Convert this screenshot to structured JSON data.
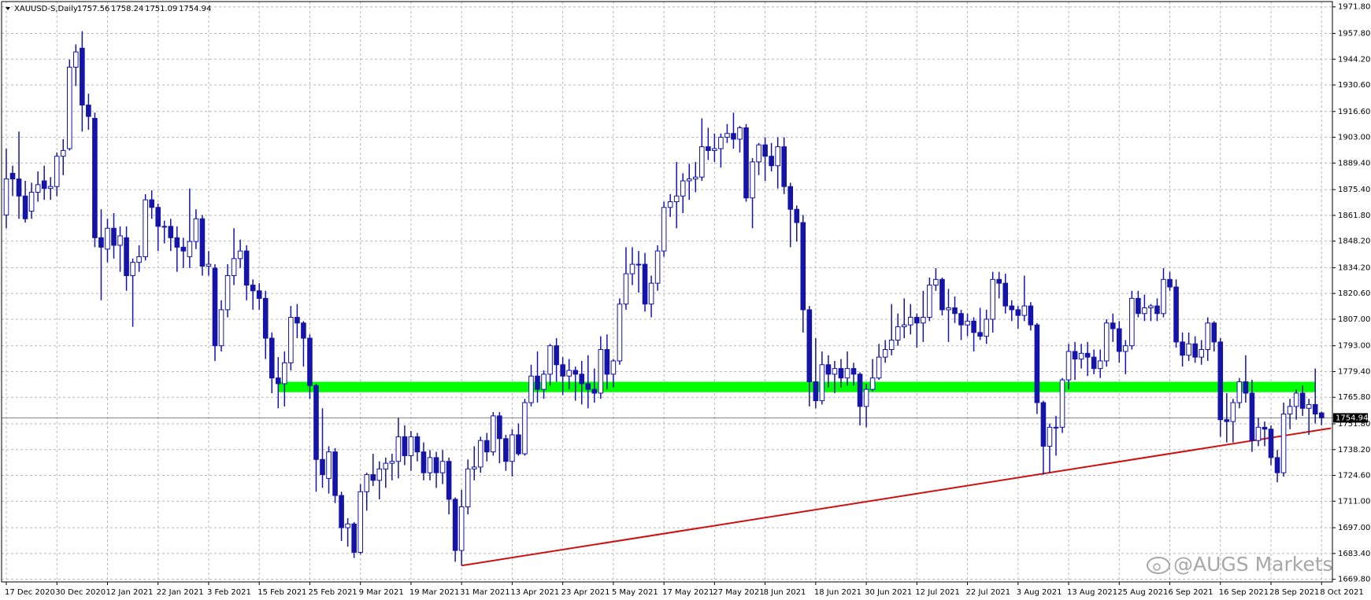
{
  "chart_data": {
    "type": "candlestick",
    "title": "XAUUSD-S,Daily",
    "watermark": "@AUGS Markets",
    "categories": [
      "17 Dec 2020",
      null,
      null,
      null,
      null,
      null,
      null,
      null,
      "30 Dec 2020",
      null,
      null,
      null,
      null,
      null,
      null,
      null,
      "12 Jan 2021",
      null,
      null,
      null,
      null,
      null,
      null,
      null,
      "22 Jan 2021",
      null,
      null,
      null,
      null,
      null,
      null,
      null,
      "3 Feb 2021",
      null,
      null,
      null,
      null,
      null,
      null,
      null,
      "15 Feb 2021",
      null,
      null,
      null,
      null,
      null,
      null,
      null,
      "25 Feb 2021",
      null,
      null,
      null,
      null,
      null,
      null,
      null,
      "9 Mar 2021",
      null,
      null,
      null,
      null,
      null,
      null,
      null,
      "19 Mar 2021",
      null,
      null,
      null,
      null,
      null,
      null,
      null,
      "31 Mar 2021",
      null,
      null,
      null,
      null,
      null,
      null,
      null,
      "13 Apr 2021",
      null,
      null,
      null,
      null,
      null,
      null,
      null,
      "23 Apr 2021",
      null,
      null,
      null,
      null,
      null,
      null,
      null,
      "5 May 2021",
      null,
      null,
      null,
      null,
      null,
      null,
      null,
      "17 May 2021",
      null,
      null,
      null,
      null,
      null,
      null,
      null,
      "27 May 2021",
      null,
      null,
      null,
      null,
      null,
      null,
      null,
      "8 Jun 2021",
      null,
      null,
      null,
      null,
      null,
      null,
      null,
      "18 Jun 2021",
      null,
      null,
      null,
      null,
      null,
      null,
      null,
      "30 Jun 2021",
      null,
      null,
      null,
      null,
      null,
      null,
      null,
      "12 Jul 2021",
      null,
      null,
      null,
      null,
      null,
      null,
      null,
      "22 Jul 2021",
      null,
      null,
      null,
      null,
      null,
      null,
      null,
      "3 Aug 2021",
      null,
      null,
      null,
      null,
      null,
      null,
      null,
      "13 Aug 2021",
      null,
      null,
      null,
      null,
      null,
      null,
      null,
      "25 Aug 2021",
      null,
      null,
      null,
      null,
      null,
      null,
      null,
      "6 Sep 2021",
      null,
      null,
      null,
      null,
      null,
      null,
      null,
      "16 Sep 2021",
      null,
      null,
      null,
      null,
      null,
      null,
      null,
      "28 Sep 2021",
      null,
      null,
      null,
      null,
      null,
      null,
      null,
      "8 Oct 2021"
    ],
    "open": [
      1862,
      1884,
      1881,
      1872,
      1864,
      1874,
      1880,
      1876,
      1877,
      1893,
      1897,
      1940,
      1950,
      1920,
      1913,
      1850,
      1844,
      1855,
      1846,
      1850,
      1830,
      1837,
      1840,
      1870,
      1866,
      1856,
      1856,
      1850,
      1845,
      1840,
      1848,
      1860,
      1835,
      1834,
      1793,
      1812,
      1830,
      1839,
      1843,
      1825,
      1822,
      1818,
      1797,
      1776,
      1773,
      1784,
      1808,
      1805,
      1797,
      1772,
      1733,
      1723,
      1737,
      1714,
      1697,
      1699,
      1684,
      1716,
      1725,
      1722,
      1728,
      1731,
      1732,
      1745,
      1735,
      1745,
      1737,
      1726,
      1734,
      1726,
      1732,
      1712,
      1685,
      1708,
      1728,
      1729,
      1743,
      1737,
      1756,
      1744,
      1732,
      1746,
      1736,
      1763,
      1777,
      1770,
      1778,
      1793,
      1783,
      1777,
      1780,
      1778,
      1773,
      1770,
      1768,
      1791,
      1778,
      1785,
      1815,
      1831,
      1836,
      1836,
      1815,
      1826,
      1843,
      1866,
      1869,
      1872,
      1880,
      1881,
      1882,
      1898,
      1896,
      1897,
      1903,
      1905,
      1902,
      1908,
      1871,
      1890,
      1899,
      1893,
      1888,
      1898,
      1877,
      1865,
      1858,
      1812,
      1774,
      1764,
      1783,
      1778,
      1781,
      1776,
      1781,
      1778,
      1761,
      1770,
      1776,
      1787,
      1791,
      1796,
      1803,
      1804,
      1808,
      1805,
      1808,
      1825,
      1828,
      1812,
      1813,
      1810,
      1804,
      1806,
      1800,
      1798,
      1807,
      1828,
      1826,
      1814,
      1812,
      1809,
      1814,
      1804,
      1763,
      1740,
      1750,
      1750,
      1775,
      1790,
      1786,
      1789,
      1787,
      1781,
      1785,
      1805,
      1802,
      1790,
      1793,
      1818,
      1810,
      1813,
      1814,
      1810,
      1828,
      1824,
      1795,
      1788,
      1794,
      1787,
      1791,
      1805,
      1795,
      1754,
      1753,
      1763,
      1774,
      1768,
      1743,
      1750,
      1749,
      1734,
      1726,
      1757,
      1761,
      1768,
      1760,
      1762,
      1757.56
    ],
    "high": [
      1897,
      1888,
      1906,
      1880,
      1879,
      1885,
      1888,
      1882,
      1895,
      1902,
      1944,
      1952,
      1959,
      1926,
      1916,
      1865,
      1860,
      1863,
      1856,
      1856,
      1839,
      1846,
      1873,
      1875,
      1868,
      1859,
      1860,
      1856,
      1850,
      1876,
      1865,
      1862,
      1843,
      1836,
      1817,
      1836,
      1855,
      1849,
      1846,
      1828,
      1826,
      1822,
      1800,
      1787,
      1790,
      1814,
      1815,
      1806,
      1799,
      1773,
      1760,
      1740,
      1739,
      1716,
      1702,
      1700,
      1720,
      1726,
      1736,
      1732,
      1734,
      1736,
      1755,
      1751,
      1748,
      1747,
      1742,
      1738,
      1737,
      1738,
      1734,
      1713,
      1717,
      1733,
      1740,
      1745,
      1747,
      1758,
      1758,
      1746,
      1749,
      1752,
      1765,
      1783,
      1790,
      1780,
      1794,
      1797,
      1787,
      1786,
      1782,
      1785,
      1788,
      1781,
      1798,
      1799,
      1786,
      1818,
      1845,
      1845,
      1843,
      1842,
      1830,
      1846,
      1869,
      1873,
      1890,
      1884,
      1889,
      1890,
      1913,
      1908,
      1905,
      1905,
      1910,
      1916,
      1909,
      1910,
      1892,
      1900,
      1903,
      1900,
      1903,
      1903,
      1879,
      1867,
      1862,
      1814,
      1797,
      1790,
      1788,
      1785,
      1786,
      1790,
      1784,
      1779,
      1773,
      1786,
      1794,
      1796,
      1815,
      1810,
      1818,
      1815,
      1810,
      1822,
      1829,
      1834,
      1829,
      1823,
      1819,
      1812,
      1810,
      1808,
      1813,
      1812,
      1832,
      1832,
      1831,
      1817,
      1814,
      1830,
      1816,
      1805,
      1764,
      1752,
      1756,
      1776,
      1794,
      1795,
      1794,
      1795,
      1791,
      1791,
      1807,
      1810,
      1806,
      1796,
      1822,
      1822,
      1820,
      1815,
      1818,
      1834,
      1832,
      1828,
      1800,
      1800,
      1798,
      1796,
      1808,
      1806,
      1797,
      1768,
      1765,
      1776,
      1788,
      1775,
      1755,
      1753,
      1751,
      1738,
      1763,
      1765,
      1770,
      1772,
      1765,
      1781,
      1758.24
    ],
    "low": [
      1855,
      1872,
      1860,
      1858,
      1860,
      1869,
      1870,
      1870,
      1872,
      1883,
      1896,
      1930,
      1906,
      1907,
      1845,
      1817,
      1837,
      1839,
      1832,
      1822,
      1803,
      1832,
      1838,
      1860,
      1843,
      1847,
      1843,
      1832,
      1834,
      1834,
      1844,
      1830,
      1830,
      1785,
      1790,
      1808,
      1825,
      1834,
      1817,
      1812,
      1812,
      1786,
      1768,
      1760,
      1761,
      1780,
      1797,
      1782,
      1765,
      1716,
      1718,
      1715,
      1710,
      1690,
      1687,
      1681,
      1683,
      1706,
      1719,
      1712,
      1718,
      1722,
      1723,
      1730,
      1727,
      1732,
      1722,
      1722,
      1718,
      1720,
      1704,
      1679,
      1677,
      1704,
      1722,
      1726,
      1732,
      1735,
      1731,
      1727,
      1724,
      1735,
      1735,
      1761,
      1763,
      1765,
      1772,
      1774,
      1767,
      1770,
      1764,
      1762,
      1760,
      1763,
      1765,
      1770,
      1771,
      1783,
      1812,
      1825,
      1821,
      1811,
      1808,
      1822,
      1840,
      1861,
      1855,
      1863,
      1870,
      1874,
      1880,
      1891,
      1890,
      1887,
      1900,
      1897,
      1895,
      1869,
      1855,
      1883,
      1880,
      1885,
      1876,
      1873,
      1845,
      1848,
      1800,
      1761,
      1760,
      1762,
      1771,
      1768,
      1771,
      1772,
      1772,
      1751,
      1750,
      1769,
      1775,
      1784,
      1788,
      1793,
      1797,
      1799,
      1792,
      1795,
      1806,
      1822,
      1809,
      1795,
      1805,
      1796,
      1798,
      1790,
      1796,
      1794,
      1800,
      1818,
      1810,
      1806,
      1802,
      1806,
      1801,
      1757,
      1725,
      1726,
      1735,
      1747,
      1770,
      1775,
      1781,
      1777,
      1778,
      1776,
      1782,
      1795,
      1784,
      1778,
      1791,
      1808,
      1806,
      1806,
      1806,
      1808,
      1822,
      1792,
      1782,
      1785,
      1784,
      1783,
      1785,
      1790,
      1745,
      1742,
      1742,
      1760,
      1763,
      1737,
      1740,
      1740,
      1730,
      1721,
      1724,
      1749,
      1754,
      1756,
      1746,
      1752,
      1751.09
    ],
    "close": [
      1881,
      1881,
      1872,
      1860,
      1874,
      1878,
      1876,
      1877,
      1893,
      1896,
      1940,
      1948,
      1920,
      1914,
      1850,
      1845,
      1855,
      1846,
      1851,
      1830,
      1837,
      1840,
      1870,
      1866,
      1856,
      1856,
      1850,
      1845,
      1843,
      1848,
      1860,
      1835,
      1836,
      1793,
      1812,
      1830,
      1839,
      1843,
      1825,
      1822,
      1818,
      1797,
      1776,
      1773,
      1784,
      1808,
      1805,
      1797,
      1772,
      1733,
      1725,
      1737,
      1714,
      1697,
      1699,
      1684,
      1716,
      1725,
      1722,
      1728,
      1731,
      1732,
      1745,
      1735,
      1745,
      1737,
      1726,
      1734,
      1726,
      1732,
      1712,
      1685,
      1708,
      1728,
      1729,
      1743,
      1737,
      1756,
      1744,
      1732,
      1746,
      1736,
      1763,
      1777,
      1770,
      1778,
      1793,
      1783,
      1777,
      1780,
      1778,
      1773,
      1770,
      1768,
      1791,
      1778,
      1785,
      1815,
      1831,
      1836,
      1836,
      1815,
      1826,
      1843,
      1866,
      1869,
      1872,
      1880,
      1881,
      1882,
      1898,
      1896,
      1897,
      1903,
      1905,
      1902,
      1908,
      1871,
      1890,
      1899,
      1893,
      1888,
      1898,
      1877,
      1865,
      1858,
      1812,
      1774,
      1764,
      1783,
      1778,
      1781,
      1776,
      1781,
      1778,
      1761,
      1770,
      1776,
      1787,
      1791,
      1796,
      1803,
      1804,
      1808,
      1805,
      1808,
      1825,
      1828,
      1812,
      1813,
      1810,
      1804,
      1806,
      1800,
      1798,
      1807,
      1828,
      1826,
      1814,
      1812,
      1809,
      1814,
      1804,
      1763,
      1740,
      1750,
      1750,
      1775,
      1790,
      1786,
      1789,
      1787,
      1781,
      1785,
      1805,
      1802,
      1790,
      1793,
      1818,
      1810,
      1813,
      1814,
      1810,
      1828,
      1824,
      1795,
      1788,
      1794,
      1787,
      1791,
      1805,
      1795,
      1754,
      1753,
      1763,
      1774,
      1768,
      1743,
      1750,
      1749,
      1734,
      1726,
      1757,
      1761,
      1768,
      1760,
      1762,
      1757,
      1754.94
    ],
    "up_color": "#ffffff",
    "down_color": "#1414a8",
    "outline_color": "#1414a8",
    "ylim": [
      1668.4,
      1974.6
    ],
    "yticks": [
      {
        "value": 1971.8,
        "label": "1971.80"
      },
      {
        "value": 1957.8,
        "label": "1957.80"
      },
      {
        "value": 1944.2,
        "label": "1944.20"
      },
      {
        "value": 1930.6,
        "label": "1930.60"
      },
      {
        "value": 1916.6,
        "label": "1916.60"
      },
      {
        "value": 1903,
        "label": "1903.00"
      },
      {
        "value": 1889.4,
        "label": "1889.40"
      },
      {
        "value": 1875.4,
        "label": "1875.40"
      },
      {
        "value": 1861.8,
        "label": "1861.80"
      },
      {
        "value": 1848.2,
        "label": "1848.20"
      },
      {
        "value": 1834.2,
        "label": "1834.20"
      },
      {
        "value": 1820.6,
        "label": "1820.60"
      },
      {
        "value": 1807,
        "label": "1807.00"
      },
      {
        "value": 1793,
        "label": "1793.00"
      },
      {
        "value": 1779.4,
        "label": "1779.40"
      },
      {
        "value": 1765.8,
        "label": "1765.80"
      },
      {
        "value": 1751.8,
        "label": "1751.80"
      },
      {
        "value": 1738.2,
        "label": "1738.20"
      },
      {
        "value": 1724.6,
        "label": "1724.60"
      },
      {
        "value": 1711,
        "label": "1711.00"
      },
      {
        "value": 1697,
        "label": "1697.00"
      },
      {
        "value": 1683.4,
        "label": "1683.40"
      },
      {
        "value": 1669.8,
        "label": "1669.80"
      }
    ],
    "grid": true,
    "current_price_line": true,
    "annotations": [
      {
        "type": "zone",
        "from": 43,
        "to": 207,
        "low": 1768.5,
        "high": 1774,
        "color": "#00ff00"
      },
      {
        "type": "trendline",
        "from": 72,
        "to": 209.5,
        "start": 1677,
        "end": 1749.5,
        "color": "#d01010"
      }
    ]
  }
}
